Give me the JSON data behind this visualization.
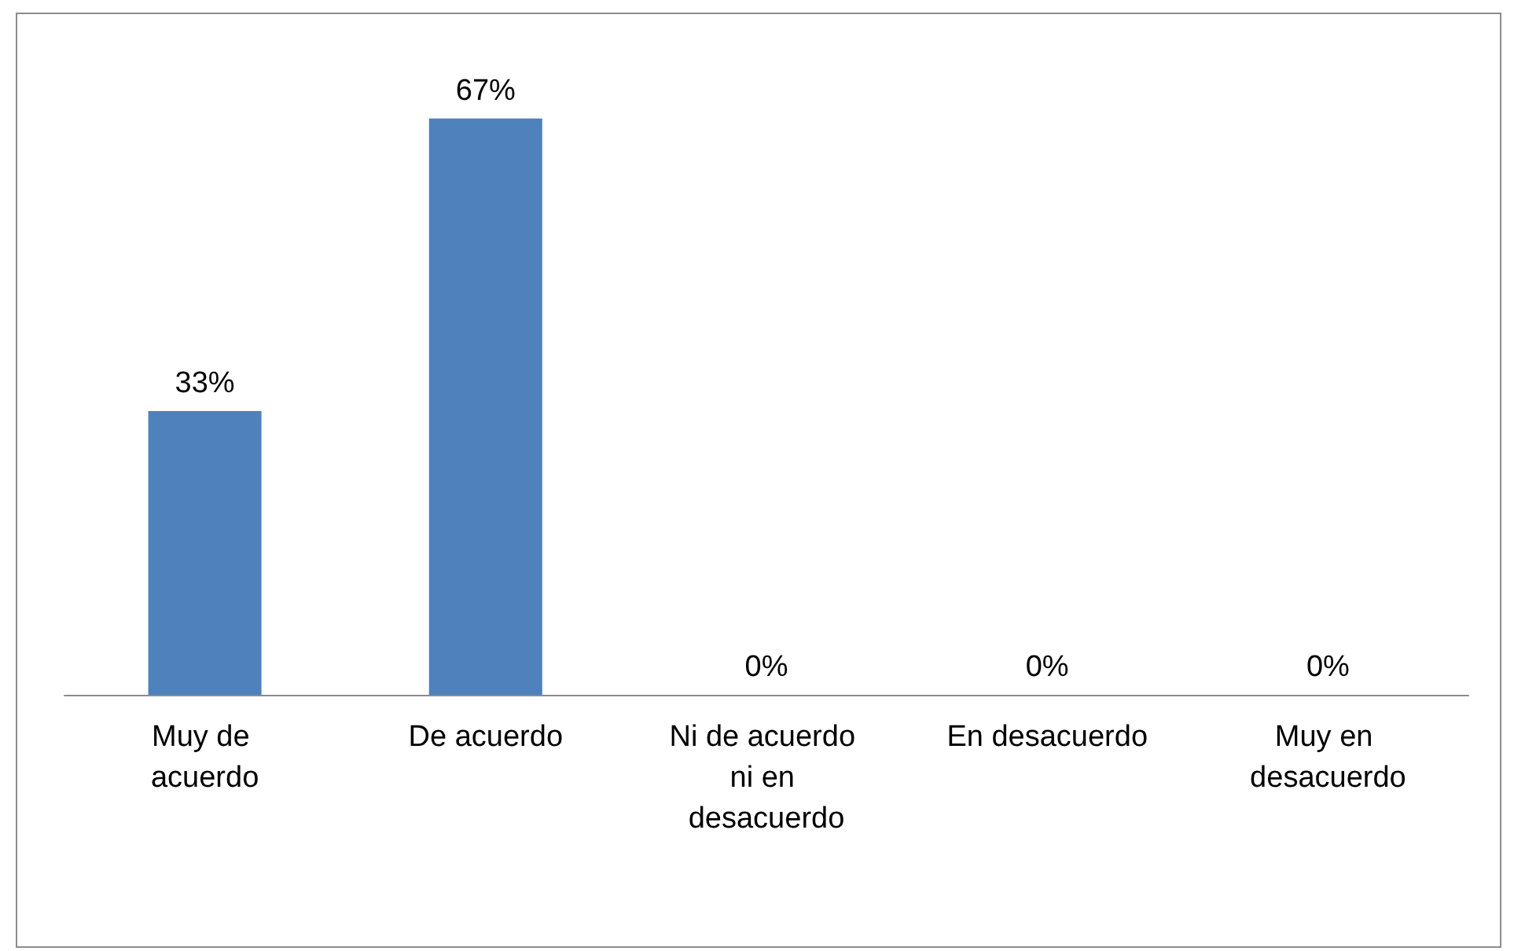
{
  "chart_data": {
    "type": "bar",
    "categories": [
      "Muy de acuerdo",
      "De acuerdo",
      "Ni de acuerdo ni en desacuerdo",
      "En desacuerdo",
      "Muy en desacuerdo"
    ],
    "values": [
      33,
      67,
      0,
      0,
      0
    ],
    "value_labels": [
      "33%",
      "67%",
      "0%",
      "0%",
      "0%"
    ],
    "color": "#4f81bd"
  }
}
